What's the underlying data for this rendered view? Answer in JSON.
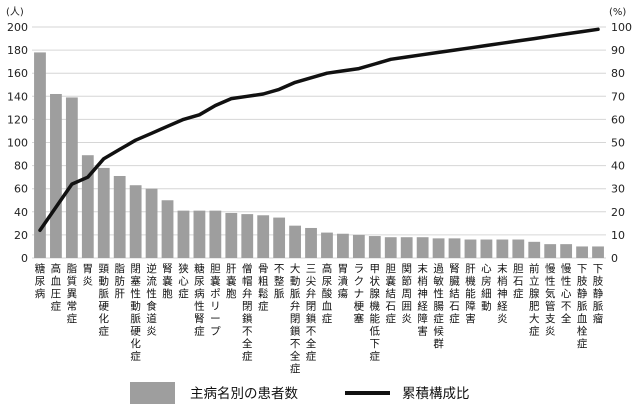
{
  "chart_data": {
    "type": "bar",
    "y_unit_left": "(人)",
    "y_unit_right": "(%)",
    "ylim_left": [
      0,
      200
    ],
    "ylim_right": [
      0,
      100
    ],
    "yticks_left": [
      "0",
      "20",
      "40",
      "60",
      "80",
      "100",
      "120",
      "140",
      "160",
      "180",
      "200"
    ],
    "yticks_right": [
      "0",
      "10",
      "20",
      "30",
      "40",
      "50",
      "60",
      "70",
      "80",
      "90",
      "100"
    ],
    "grid": true,
    "legend_position": "bottom",
    "categories": [
      "糖尿病",
      "高血圧症",
      "脂質異常症",
      "胃炎",
      "頸動脈硬化症",
      "脂肪肝",
      "閉塞性動脈硬化症",
      "逆流性食道炎",
      "腎嚢胞",
      "狭心症",
      "糖尿病性腎症",
      "胆嚢ポリープ",
      "肝嚢胞",
      "僧帽弁閉鎖不全症",
      "骨粗鬆症",
      "不整脈",
      "大動脈弁閉鎖不全症",
      "三尖弁閉鎖不全症",
      "高尿酸血症",
      "胃潰瘍",
      "ラクナ梗塞",
      "甲状腺機能低下症",
      "胆嚢結石症",
      "関節周囲炎",
      "末梢神経障害",
      "過敏性腸症候群",
      "腎臓結石症",
      "肝機能障害",
      "心房細動",
      "末梢神経炎",
      "胆石症",
      "前立腺肥大症",
      "慢性気管支炎",
      "慢性心不全",
      "下肢静脈血栓症",
      "下肢静脈瘤"
    ],
    "series": [
      {
        "name": "主病名別の患者数",
        "kind": "bar",
        "color": "#9e9e9e",
        "values": [
          178,
          142,
          139,
          89,
          78,
          71,
          63,
          60,
          50,
          41,
          41,
          41,
          39,
          38,
          37,
          35,
          28,
          26,
          22,
          21,
          20,
          19,
          18,
          18,
          18,
          17,
          17,
          16,
          16,
          16,
          16,
          14,
          12,
          12,
          10,
          10
        ]
      },
      {
        "name": "累積構成比",
        "kind": "line",
        "color": "#111111",
        "axis": "right",
        "values": [
          12,
          22,
          32,
          35,
          43,
          47,
          51,
          54,
          57,
          60,
          62,
          66,
          69,
          70,
          71,
          73,
          76,
          78,
          80,
          81,
          82,
          84,
          86,
          87,
          88,
          89,
          90,
          91,
          92,
          93,
          94,
          95,
          96,
          97,
          98,
          99
        ]
      }
    ]
  }
}
